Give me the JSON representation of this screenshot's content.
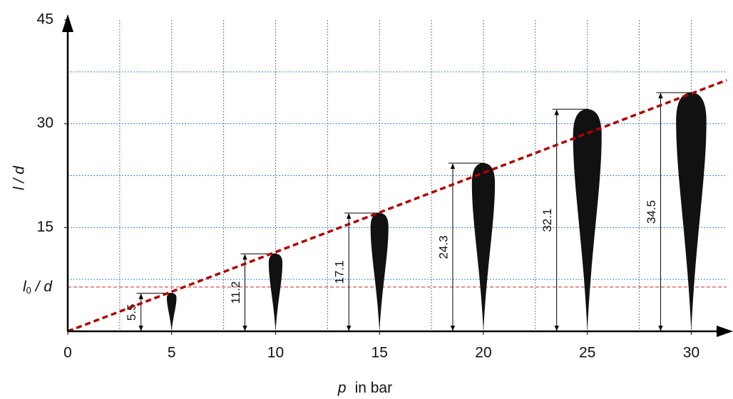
{
  "chart_data": {
    "type": "spray",
    "ylabel": "l / d",
    "xlabel": {
      "var": "p",
      "unit": "in bar"
    },
    "x": [
      5,
      10,
      15,
      20,
      25,
      30
    ],
    "values": [
      5.5,
      11.2,
      17.1,
      24.3,
      32.1,
      34.5
    ],
    "value_labels": [
      "5.5",
      "11.2",
      "17.1",
      "24.3",
      "32.1",
      "34.5"
    ],
    "color": "#111111",
    "xlim": [
      0,
      31.7
    ],
    "ylim": [
      0,
      45
    ],
    "xticks": [
      0,
      5,
      10,
      15,
      20,
      25,
      30
    ],
    "yticks": [
      15,
      30,
      45
    ],
    "xgrid": [
      2.5,
      5,
      7.5,
      10,
      12.5,
      15,
      17.5,
      20,
      22.5,
      25,
      27.5,
      30
    ],
    "ygrid": [
      7.5,
      15,
      22.5,
      30,
      37.5
    ],
    "grid_color": "#3a86d4",
    "fit": {
      "x": [
        0,
        31.7
      ],
      "values": [
        0,
        36.3
      ],
      "color": "#b00000"
    },
    "threshold": {
      "value": 6.4,
      "label": {
        "base": "l",
        "sub": "0",
        "rest": " / d"
      },
      "color": "#e05050"
    }
  }
}
